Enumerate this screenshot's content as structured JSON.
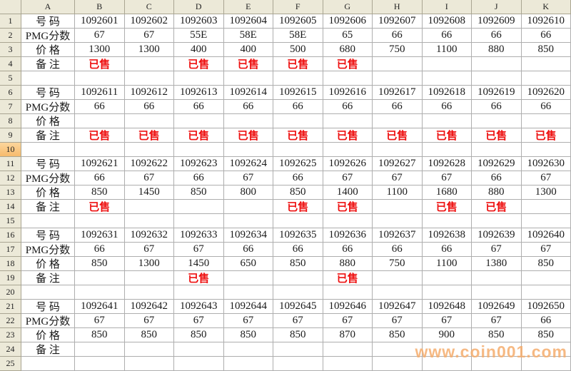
{
  "sheet": {
    "corner_label": "",
    "column_headers": [
      "A",
      "B",
      "C",
      "D",
      "E",
      "F",
      "G",
      "H",
      "I",
      "J",
      "K"
    ],
    "selected_row": 10,
    "rows": [
      {
        "n": "1",
        "type": "number",
        "cells": [
          "号 码",
          "1092601",
          "1092602",
          "1092603",
          "1092604",
          "1092605",
          "1092606",
          "1092607",
          "1092608",
          "1092609",
          "1092610"
        ]
      },
      {
        "n": "2",
        "type": "score",
        "cells": [
          "PMG分数",
          "67",
          "67",
          "55E",
          "58E",
          "58E",
          "65",
          "66",
          "66",
          "66",
          "66"
        ]
      },
      {
        "n": "3",
        "type": "price",
        "cells": [
          "价 格",
          "1300",
          "1300",
          "400",
          "400",
          "500",
          "680",
          "750",
          "1100",
          "880",
          "850"
        ]
      },
      {
        "n": "4",
        "type": "remark",
        "cells": [
          "备 注",
          "已售",
          "",
          "已售",
          "已售",
          "已售",
          "已售",
          "",
          "",
          "",
          ""
        ]
      },
      {
        "n": "5",
        "type": "empty",
        "cells": [
          "",
          "",
          "",
          "",
          "",
          "",
          "",
          "",
          "",
          "",
          ""
        ]
      },
      {
        "n": "6",
        "type": "number",
        "cells": [
          "号 码",
          "1092611",
          "1092612",
          "1092613",
          "1092614",
          "1092615",
          "1092616",
          "1092617",
          "1092618",
          "1092619",
          "1092620"
        ]
      },
      {
        "n": "7",
        "type": "score",
        "cells": [
          "PMG分数",
          "66",
          "66",
          "66",
          "66",
          "66",
          "66",
          "66",
          "66",
          "66",
          "66"
        ]
      },
      {
        "n": "8",
        "type": "price",
        "cells": [
          "价 格",
          "",
          "",
          "",
          "",
          "",
          "",
          "",
          "",
          "",
          ""
        ]
      },
      {
        "n": "9",
        "type": "remark",
        "cells": [
          "备 注",
          "已售",
          "已售",
          "已售",
          "已售",
          "已售",
          "已售",
          "已售",
          "已售",
          "已售",
          "已售"
        ]
      },
      {
        "n": "10",
        "type": "empty",
        "cells": [
          "",
          "",
          "",
          "",
          "",
          "",
          "",
          "",
          "",
          "",
          ""
        ]
      },
      {
        "n": "11",
        "type": "number",
        "cells": [
          "号 码",
          "1092621",
          "1092622",
          "1092623",
          "1092624",
          "1092625",
          "1092626",
          "1092627",
          "1092628",
          "1092629",
          "1092630"
        ]
      },
      {
        "n": "12",
        "type": "score",
        "cells": [
          "PMG分数",
          "66",
          "67",
          "66",
          "67",
          "66",
          "67",
          "67",
          "67",
          "66",
          "67"
        ]
      },
      {
        "n": "13",
        "type": "price",
        "cells": [
          "价 格",
          "850",
          "1450",
          "850",
          "800",
          "850",
          "1400",
          "1100",
          "1680",
          "880",
          "1300"
        ]
      },
      {
        "n": "14",
        "type": "remark",
        "cells": [
          "备 注",
          "已售",
          "",
          "",
          "",
          "已售",
          "已售",
          "",
          "已售",
          "已售",
          ""
        ]
      },
      {
        "n": "15",
        "type": "empty",
        "cells": [
          "",
          "",
          "",
          "",
          "",
          "",
          "",
          "",
          "",
          "",
          ""
        ]
      },
      {
        "n": "16",
        "type": "number",
        "cells": [
          "号 码",
          "1092631",
          "1092632",
          "1092633",
          "1092634",
          "1092635",
          "1092636",
          "1092637",
          "1092638",
          "1092639",
          "1092640"
        ]
      },
      {
        "n": "17",
        "type": "score",
        "cells": [
          "PMG分数",
          "66",
          "67",
          "67",
          "66",
          "66",
          "66",
          "66",
          "66",
          "67",
          "67"
        ]
      },
      {
        "n": "18",
        "type": "price",
        "cells": [
          "价 格",
          "850",
          "1300",
          "1450",
          "650",
          "850",
          "880",
          "750",
          "1100",
          "1380",
          "850"
        ]
      },
      {
        "n": "19",
        "type": "remark",
        "cells": [
          "备 注",
          "",
          "",
          "已售",
          "",
          "",
          "已售",
          "",
          "",
          "",
          ""
        ]
      },
      {
        "n": "20",
        "type": "empty",
        "cells": [
          "",
          "",
          "",
          "",
          "",
          "",
          "",
          "",
          "",
          "",
          ""
        ]
      },
      {
        "n": "21",
        "type": "number",
        "cells": [
          "号 码",
          "1092641",
          "1092642",
          "1092643",
          "1092644",
          "1092645",
          "1092646",
          "1092647",
          "1092648",
          "1092649",
          "1092650"
        ]
      },
      {
        "n": "22",
        "type": "score",
        "cells": [
          "PMG分数",
          "67",
          "67",
          "67",
          "67",
          "67",
          "67",
          "67",
          "67",
          "67",
          "66"
        ]
      },
      {
        "n": "23",
        "type": "price",
        "cells": [
          "价 格",
          "850",
          "850",
          "850",
          "850",
          "850",
          "870",
          "850",
          "900",
          "850",
          "850"
        ]
      },
      {
        "n": "24",
        "type": "remark",
        "cells": [
          "备 注",
          "",
          "",
          "",
          "",
          "",
          "",
          "",
          "",
          "",
          ""
        ]
      },
      {
        "n": "25",
        "type": "empty",
        "cells": [
          "",
          "",
          "",
          "",
          "",
          "",
          "",
          "",
          "",
          "",
          ""
        ]
      }
    ]
  },
  "watermark": {
    "text": "www.coin001.com",
    "color": "#f5ad6e"
  },
  "colors": {
    "sold_red": "#ee1010",
    "header_bg": "#ece9d8",
    "selected_header_bg": "#f8c078",
    "gridline": "#aeaeae"
  }
}
